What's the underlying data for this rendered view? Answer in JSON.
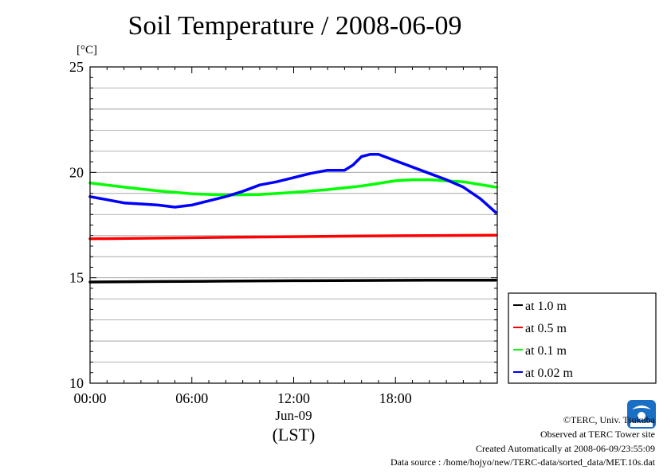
{
  "chart_data": {
    "type": "line",
    "title": "Soil Temperature / 2008-06-09",
    "ylabel": "[°C]",
    "xlabel": "(LST)",
    "date_label": "Jun-09",
    "ylim": [
      10,
      25
    ],
    "xlim": [
      0,
      24
    ],
    "yticks": [
      10,
      15,
      20,
      25
    ],
    "xticks": [
      {
        "value": 0,
        "label": "00:00"
      },
      {
        "value": 6,
        "label": "06:00"
      },
      {
        "value": 12,
        "label": "12:00"
      },
      {
        "value": 18,
        "label": "18:00"
      }
    ],
    "grid": true,
    "legend_position": "right-bottom",
    "series": [
      {
        "name": "at 1.0 m",
        "color": "#000000",
        "x": [
          0,
          4,
          8,
          12,
          16,
          20,
          23.9
        ],
        "y": [
          14.8,
          14.82,
          14.84,
          14.86,
          14.87,
          14.88,
          14.88
        ]
      },
      {
        "name": "at 0.5 m",
        "color": "#ff0000",
        "x": [
          0,
          4,
          8,
          12,
          16,
          20,
          23.9
        ],
        "y": [
          16.85,
          16.88,
          16.92,
          16.95,
          16.98,
          17.0,
          17.02
        ]
      },
      {
        "name": "at 0.1 m",
        "color": "#00ff00",
        "x": [
          0,
          2,
          4,
          6,
          8,
          10,
          12,
          14,
          16,
          18,
          19,
          20,
          22,
          23.9
        ],
        "y": [
          19.5,
          19.3,
          19.12,
          18.98,
          18.92,
          18.95,
          19.05,
          19.18,
          19.35,
          19.6,
          19.65,
          19.65,
          19.55,
          19.3
        ]
      },
      {
        "name": "at 0.02 m",
        "color": "#0000ff",
        "x": [
          0,
          1,
          2,
          3,
          4,
          5,
          6,
          7,
          8,
          9,
          10,
          11,
          12,
          13,
          14,
          15,
          15.5,
          16,
          16.5,
          17,
          17.5,
          18,
          19,
          20,
          21,
          22,
          23,
          23.9
        ],
        "y": [
          18.85,
          18.7,
          18.55,
          18.5,
          18.45,
          18.35,
          18.45,
          18.65,
          18.85,
          19.1,
          19.4,
          19.55,
          19.75,
          19.95,
          20.1,
          20.1,
          20.35,
          20.75,
          20.85,
          20.85,
          20.7,
          20.55,
          20.25,
          19.95,
          19.65,
          19.3,
          18.75,
          18.1
        ]
      }
    ]
  },
  "credits": {
    "copyright": "©TERC, Univ. Tsukuba",
    "observed": "Observed at TERC Tower site",
    "created": "Created Automatically at 2008-06-09/23:55:09",
    "source": "Data source : /home/hojyo/new/TERC-data/sorted_data/MET.10s.dat"
  },
  "logo": {
    "text": "TERC",
    "color": "#1a6fc4"
  }
}
